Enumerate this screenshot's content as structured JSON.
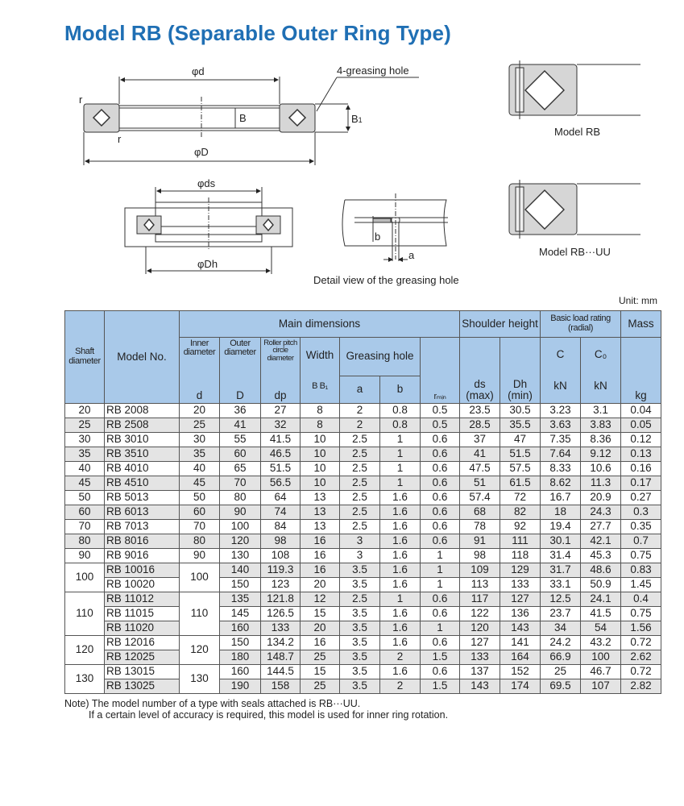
{
  "title": "Model RB (Separable Outer Ring Type)",
  "diagram": {
    "phi_d": "φd",
    "greasing_hole": "4-greasing hole",
    "B": "B",
    "B1": "B",
    "B1_sub": "1",
    "r_top": "r",
    "r_bottom": "r",
    "phi_D": "φD",
    "phi_ds": "φds",
    "phi_Dh": "φDh",
    "b": "b",
    "a": "a",
    "detail_caption": "Detail view of the greasing hole",
    "model_rb": "Model RB",
    "model_rbuu": "Model RB···UU"
  },
  "unit": "Unit: mm",
  "table": {
    "headers": {
      "shaft": "Shaft diameter",
      "model": "Model No.",
      "main": "Main dimensions",
      "inner": "Inner diameter",
      "outer": "Outer diameter",
      "roller": "Roller pitch circle diameter",
      "width": "Width",
      "greasing": "Greasing hole",
      "shoulder": "Shoulder height",
      "load": "Basic load rating (radial)",
      "mass": "Mass",
      "d": "d",
      "D": "D",
      "dp": "dp",
      "BB1": "B B₁",
      "a": "a",
      "b": "b",
      "rmin": "rₘᵢₙ",
      "ds": "ds (max)",
      "Dh": "Dh (min)",
      "C": "C",
      "C0": "C₀",
      "kN1": "kN",
      "kN2": "kN",
      "kg": "kg"
    },
    "rows": [
      [
        "20",
        "RB 2008",
        "20",
        "36",
        "27",
        "8",
        "2",
        "0.8",
        "0.5",
        "23.5",
        "30.5",
        "3.23",
        "3.1",
        "0.04"
      ],
      [
        "25",
        "RB 2508",
        "25",
        "41",
        "32",
        "8",
        "2",
        "0.8",
        "0.5",
        "28.5",
        "35.5",
        "3.63",
        "3.83",
        "0.05"
      ],
      [
        "30",
        "RB 3010",
        "30",
        "55",
        "41.5",
        "10",
        "2.5",
        "1",
        "0.6",
        "37",
        "47",
        "7.35",
        "8.36",
        "0.12"
      ],
      [
        "35",
        "RB 3510",
        "35",
        "60",
        "46.5",
        "10",
        "2.5",
        "1",
        "0.6",
        "41",
        "51.5",
        "7.64",
        "9.12",
        "0.13"
      ],
      [
        "40",
        "RB 4010",
        "40",
        "65",
        "51.5",
        "10",
        "2.5",
        "1",
        "0.6",
        "47.5",
        "57.5",
        "8.33",
        "10.6",
        "0.16"
      ],
      [
        "45",
        "RB 4510",
        "45",
        "70",
        "56.5",
        "10",
        "2.5",
        "1",
        "0.6",
        "51",
        "61.5",
        "8.62",
        "11.3",
        "0.17"
      ],
      [
        "50",
        "RB 5013",
        "50",
        "80",
        "64",
        "13",
        "2.5",
        "1.6",
        "0.6",
        "57.4",
        "72",
        "16.7",
        "20.9",
        "0.27"
      ],
      [
        "60",
        "RB 6013",
        "60",
        "90",
        "74",
        "13",
        "2.5",
        "1.6",
        "0.6",
        "68",
        "82",
        "18",
        "24.3",
        "0.3"
      ],
      [
        "70",
        "RB 7013",
        "70",
        "100",
        "84",
        "13",
        "2.5",
        "1.6",
        "0.6",
        "78",
        "92",
        "19.4",
        "27.7",
        "0.35"
      ],
      [
        "80",
        "RB 8016",
        "80",
        "120",
        "98",
        "16",
        "3",
        "1.6",
        "0.6",
        "91",
        "111",
        "30.1",
        "42.1",
        "0.7"
      ],
      [
        "90",
        "RB 9016",
        "90",
        "130",
        "108",
        "16",
        "3",
        "1.6",
        "1",
        "98",
        "118",
        "31.4",
        "45.3",
        "0.75"
      ],
      [
        "100",
        "RB 10016",
        "100",
        "140",
        "119.3",
        "16",
        "3.5",
        "1.6",
        "1",
        "109",
        "129",
        "31.7",
        "48.6",
        "0.83"
      ],
      [
        "100",
        "RB 10020",
        "100",
        "150",
        "123",
        "20",
        "3.5",
        "1.6",
        "1",
        "113",
        "133",
        "33.1",
        "50.9",
        "1.45"
      ],
      [
        "110",
        "RB 11012",
        "110",
        "135",
        "121.8",
        "12",
        "2.5",
        "1",
        "0.6",
        "117",
        "127",
        "12.5",
        "24.1",
        "0.4"
      ],
      [
        "110",
        "RB 11015",
        "110",
        "145",
        "126.5",
        "15",
        "3.5",
        "1.6",
        "0.6",
        "122",
        "136",
        "23.7",
        "41.5",
        "0.75"
      ],
      [
        "110",
        "RB 11020",
        "110",
        "160",
        "133",
        "20",
        "3.5",
        "1.6",
        "1",
        "120",
        "143",
        "34",
        "54",
        "1.56"
      ],
      [
        "120",
        "RB 12016",
        "120",
        "150",
        "134.2",
        "16",
        "3.5",
        "1.6",
        "0.6",
        "127",
        "141",
        "24.2",
        "43.2",
        "0.72"
      ],
      [
        "120",
        "RB 12025",
        "120",
        "180",
        "148.7",
        "25",
        "3.5",
        "2",
        "1.5",
        "133",
        "164",
        "66.9",
        "100",
        "2.62"
      ],
      [
        "130",
        "RB 13015",
        "130",
        "160",
        "144.5",
        "15",
        "3.5",
        "1.6",
        "0.6",
        "137",
        "152",
        "25",
        "46.7",
        "0.72"
      ],
      [
        "130",
        "RB 13025",
        "130",
        "190",
        "158",
        "25",
        "3.5",
        "2",
        "1.5",
        "143",
        "174",
        "69.5",
        "107",
        "2.82"
      ]
    ]
  },
  "note": {
    "line1": "Note) The model number of a type with seals attached is RB···UU.",
    "line2": "If a certain level of accuracy is required, this model is used for inner ring rotation."
  },
  "colors": {
    "title": "#1f6fb4",
    "header_bg": "#a9c9e9",
    "row_shade": "#e4e4e4",
    "diagram_fill": "#d6d6d6"
  }
}
